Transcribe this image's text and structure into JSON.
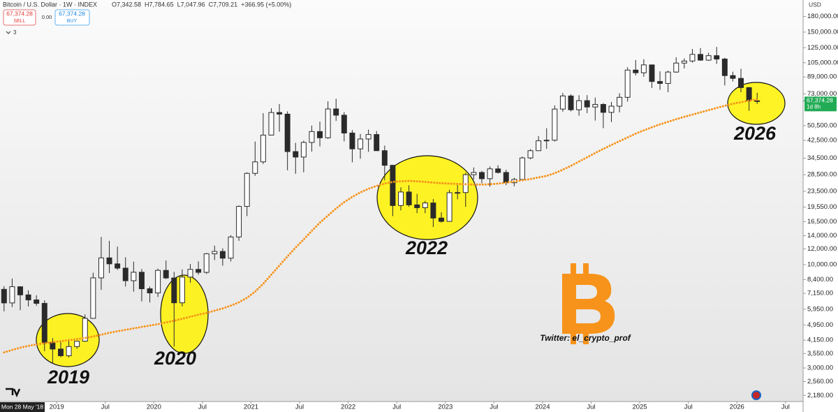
{
  "chart_data": {
    "type": "candlestick",
    "title": "Bitcoin / U.S. Dollar · 1W · INDEX",
    "header_values": [
      "O7,342.58",
      "H7,784.65",
      "L7,047.96",
      "C7,709.21",
      "+366.95 (+5.00%)"
    ],
    "sell_price": "67,374.28",
    "sell_label": "SELL",
    "spread": "0.00",
    "buy_price": "67,374.28",
    "buy_label": "BUY",
    "indicator_count": "3",
    "currency": "USD",
    "crosshair_date": "Mon 28 May '18",
    "current_price": {
      "value": 67374.28,
      "label": "67,374.28"
    },
    "countdown": "1d 8h",
    "annotations": [
      "2019",
      "2020",
      "2022",
      "2026"
    ],
    "watermark": "Twitter: el_crypto_prof",
    "log_scale": true,
    "up_color": "#2a2a2a",
    "down_color": "#2a2a2a",
    "xlim": [
      "2018-06",
      "2026-09"
    ],
    "xticks": [
      {
        "value": "2019-01",
        "label": "2019"
      },
      {
        "value": "2019-07",
        "label": "Jul"
      },
      {
        "value": "2020-01",
        "label": "2020"
      },
      {
        "value": "2020-07",
        "label": "Jul"
      },
      {
        "value": "2021-01",
        "label": "2021"
      },
      {
        "value": "2021-07",
        "label": "Jul"
      },
      {
        "value": "2022-01",
        "label": "2022"
      },
      {
        "value": "2022-07",
        "label": "Jul"
      },
      {
        "value": "2023-01",
        "label": "2023"
      },
      {
        "value": "2023-07",
        "label": "Jul"
      },
      {
        "value": "2024-01",
        "label": "2024"
      },
      {
        "value": "2024-07",
        "label": "Jul"
      },
      {
        "value": "2025-01",
        "label": "2025"
      },
      {
        "value": "2025-07",
        "label": "Jul"
      },
      {
        "value": "2026-01",
        "label": "2026"
      },
      {
        "value": "2026-07",
        "label": "Jul"
      }
    ],
    "ylim": [
      2030,
      218000
    ],
    "yticks": [
      {
        "value": 180000,
        "label": "180,000.00"
      },
      {
        "value": 150000,
        "label": "150,000.00"
      },
      {
        "value": 125000,
        "label": "125,000.00"
      },
      {
        "value": 105000,
        "label": "105,000.00"
      },
      {
        "value": 89000,
        "label": "89,000.00"
      },
      {
        "value": 73000,
        "label": "73,000.00"
      },
      {
        "value": 50500,
        "label": "50,500.00"
      },
      {
        "value": 42500,
        "label": "42,500.00"
      },
      {
        "value": 34500,
        "label": "34,500.00"
      },
      {
        "value": 28500,
        "label": "28,500.00"
      },
      {
        "value": 23500,
        "label": "23,500.00"
      },
      {
        "value": 19550,
        "label": "19,550.00"
      },
      {
        "value": 16500,
        "label": "16,500.00"
      },
      {
        "value": 14000,
        "label": "14,000.00"
      },
      {
        "value": 12000,
        "label": "12,000.00"
      },
      {
        "value": 10000,
        "label": "10,000.00"
      },
      {
        "value": 8400,
        "label": "8,400.00"
      },
      {
        "value": 7150,
        "label": "7,150.00"
      },
      {
        "value": 5950,
        "label": "5,950.00"
      },
      {
        "value": 4950,
        "label": "4,950.00"
      },
      {
        "value": 4150,
        "label": "4,150.00"
      },
      {
        "value": 3550,
        "label": "3,550.00"
      },
      {
        "value": 3000,
        "label": "3,000.00"
      },
      {
        "value": 2560,
        "label": "2,560.00"
      },
      {
        "value": 2180,
        "label": "2,180.00"
      }
    ],
    "x": [
      "2018-06",
      "2018-07",
      "2018-08",
      "2018-09",
      "2018-10",
      "2018-11",
      "2018-12",
      "2019-01",
      "2019-02",
      "2019-03",
      "2019-04",
      "2019-05",
      "2019-06",
      "2019-07",
      "2019-08",
      "2019-09",
      "2019-10",
      "2019-11",
      "2019-12",
      "2020-01",
      "2020-02",
      "2020-03",
      "2020-04",
      "2020-05",
      "2020-06",
      "2020-07",
      "2020-08",
      "2020-09",
      "2020-10",
      "2020-11",
      "2020-12",
      "2021-01",
      "2021-02",
      "2021-03",
      "2021-04",
      "2021-05",
      "2021-06",
      "2021-07",
      "2021-08",
      "2021-09",
      "2021-10",
      "2021-11",
      "2021-12",
      "2022-01",
      "2022-02",
      "2022-03",
      "2022-04",
      "2022-05",
      "2022-06",
      "2022-07",
      "2022-08",
      "2022-09",
      "2022-10",
      "2022-11",
      "2022-12",
      "2023-01",
      "2023-02",
      "2023-03",
      "2023-04",
      "2023-05",
      "2023-06",
      "2023-07",
      "2023-08",
      "2023-09",
      "2023-10",
      "2023-11",
      "2023-12",
      "2024-01",
      "2024-02",
      "2024-03",
      "2024-04",
      "2024-05",
      "2024-06",
      "2024-07",
      "2024-08",
      "2024-09",
      "2024-10",
      "2024-11",
      "2024-12",
      "2025-01",
      "2025-02",
      "2025-03",
      "2025-04",
      "2025-05",
      "2025-06",
      "2025-07",
      "2025-08",
      "2025-09",
      "2025-10",
      "2025-11",
      "2025-12",
      "2026-01",
      "2026-02",
      "2026-03"
    ],
    "open": [
      7500,
      6400,
      7730,
      7030,
      6630,
      6370,
      4040,
      3740,
      3460,
      3850,
      4100,
      5350,
      8570,
      10820,
      10090,
      9600,
      8290,
      9150,
      7550,
      7190,
      9350,
      8560,
      6410,
      8650,
      9460,
      9140,
      11350,
      11660,
      10780,
      13800,
      19700,
      28950,
      33100,
      45200,
      58800,
      57700,
      37300,
      35000,
      41500,
      47100,
      43800,
      61300,
      57000,
      46300,
      38500,
      43200,
      45500,
      37700,
      31800,
      19900,
      23300,
      20050,
      19400,
      20500,
      17200,
      16550,
      23100,
      23150,
      28500,
      29250,
      27200,
      30500,
      29250,
      25950,
      26970,
      34650,
      37700,
      42300,
      42600,
      61200,
      71300,
      60700,
      67500,
      62700,
      64600,
      58900,
      63300,
      70200,
      96400,
      93400,
      102400,
      84400,
      82500,
      94200,
      104600,
      107100,
      115700,
      108200,
      114000,
      109600,
      90400,
      87500,
      78600,
      67400
    ],
    "high": [
      7780,
      8500,
      7760,
      7410,
      7000,
      6600,
      4250,
      4100,
      4200,
      4120,
      5600,
      9100,
      13800,
      13200,
      12330,
      10900,
      10350,
      9500,
      7750,
      9550,
      10500,
      9190,
      9460,
      10070,
      10380,
      11450,
      12470,
      12090,
      14100,
      19900,
      29300,
      41950,
      58350,
      61800,
      64900,
      59600,
      41300,
      42400,
      50500,
      52900,
      67000,
      69000,
      59100,
      47900,
      45800,
      48200,
      47400,
      40000,
      31900,
      24600,
      25200,
      22800,
      21000,
      21450,
      18400,
      23900,
      25250,
      29200,
      31000,
      29800,
      31400,
      31800,
      30200,
      27500,
      35200,
      38400,
      44700,
      49000,
      63900,
      73800,
      72700,
      71900,
      72000,
      70000,
      65600,
      66500,
      73600,
      99600,
      108300,
      109400,
      102500,
      95000,
      95800,
      111900,
      110500,
      123200,
      124500,
      117900,
      126200,
      111200,
      94600,
      97900,
      79000,
      74000
    ],
    "low": [
      5800,
      6100,
      5880,
      6140,
      6200,
      3650,
      3150,
      3400,
      3390,
      3750,
      4070,
      5330,
      7450,
      9060,
      9400,
      7750,
      7300,
      6520,
      6440,
      6860,
      8450,
      3850,
      6150,
      8100,
      8900,
      8970,
      10540,
      9880,
      10370,
      13200,
      17600,
      28130,
      32300,
      45000,
      47000,
      30000,
      28800,
      29300,
      37300,
      39600,
      43300,
      53300,
      42000,
      32900,
      34300,
      37200,
      37700,
      26700,
      17600,
      18800,
      19600,
      18200,
      18200,
      15500,
      16300,
      16500,
      21400,
      19600,
      26950,
      25800,
      24800,
      28900,
      25200,
      24900,
      26600,
      34100,
      37600,
      38500,
      41900,
      59300,
      59600,
      56600,
      58400,
      53500,
      49000,
      52600,
      58900,
      66800,
      90500,
      89200,
      78200,
      76600,
      74400,
      93400,
      98200,
      105100,
      107300,
      107300,
      103500,
      80600,
      84400,
      74500,
      60000,
      65000
    ],
    "close": [
      6400,
      7730,
      7030,
      6630,
      6370,
      4040,
      3740,
      3460,
      3850,
      4100,
      5350,
      8570,
      10820,
      10090,
      9600,
      8290,
      9150,
      7550,
      7190,
      9350,
      8560,
      6410,
      8650,
      9460,
      9140,
      11350,
      11660,
      10780,
      13800,
      19700,
      28950,
      33100,
      45200,
      58800,
      57700,
      37300,
      35000,
      41500,
      47100,
      43800,
      61300,
      57000,
      46300,
      38500,
      43200,
      45500,
      37700,
      31800,
      19900,
      23300,
      20050,
      19400,
      20500,
      17200,
      16550,
      23100,
      23150,
      28500,
      29250,
      27200,
      30500,
      29250,
      25950,
      26970,
      34650,
      37700,
      42300,
      42600,
      61200,
      71300,
      60700,
      67500,
      62700,
      64600,
      58900,
      63300,
      70200,
      96400,
      93400,
      102400,
      84400,
      82500,
      94200,
      104600,
      107100,
      115700,
      108200,
      114000,
      109600,
      90400,
      87500,
      78600,
      67400,
      67374.28
    ],
    "moving_average": {
      "color": "#f7931a",
      "values": [
        3600,
        3700,
        3800,
        3880,
        3950,
        4000,
        4050,
        4100,
        4150,
        4200,
        4260,
        4330,
        4420,
        4520,
        4600,
        4680,
        4760,
        4840,
        4920,
        5000,
        5100,
        5200,
        5320,
        5450,
        5580,
        5700,
        5850,
        6000,
        6200,
        6450,
        6800,
        7300,
        8000,
        8900,
        9900,
        11000,
        12200,
        13400,
        14800,
        16300,
        17700,
        19200,
        20700,
        22000,
        23200,
        24200,
        25000,
        25700,
        26200,
        26400,
        26500,
        26400,
        26200,
        26000,
        25800,
        25700,
        25600,
        25500,
        25400,
        25400,
        25500,
        25700,
        26000,
        26300,
        26700,
        27100,
        27600,
        28100,
        29000,
        30200,
        31600,
        33200,
        34900,
        36700,
        38500,
        40300,
        42100,
        44000,
        46000,
        47800,
        49500,
        51200,
        52800,
        54400,
        55900,
        57400,
        58900,
        60400,
        62000,
        63600,
        65100,
        66300,
        67500,
        68400
      ]
    }
  }
}
